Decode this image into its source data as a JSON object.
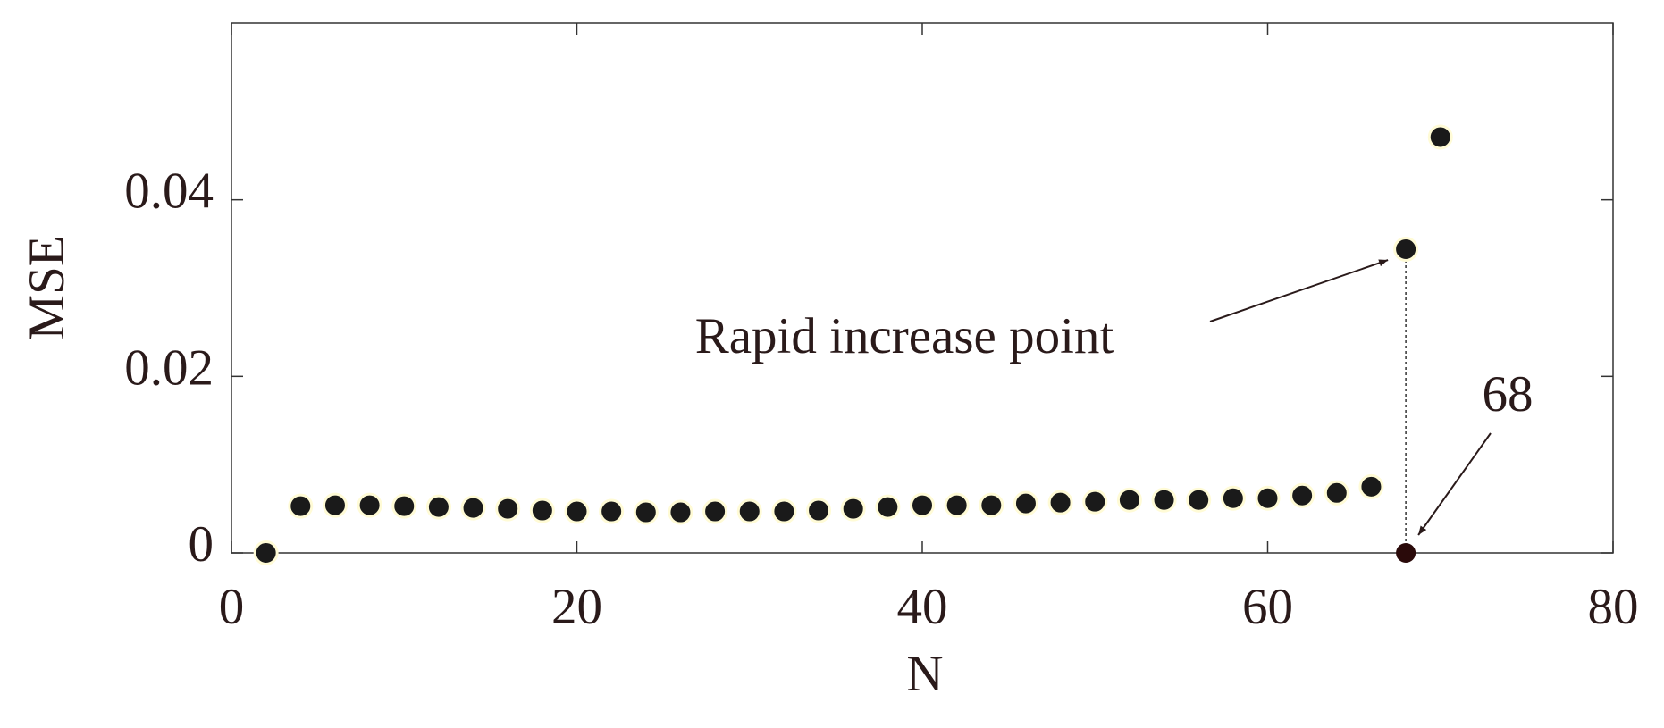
{
  "chart_data": {
    "type": "scatter",
    "x_label": "N",
    "y_label": "MSE",
    "series": [
      {
        "name": "MSE",
        "color": "#1a1a1a",
        "x": [
          2,
          4,
          6,
          8,
          10,
          12,
          14,
          16,
          18,
          20,
          22,
          24,
          26,
          28,
          30,
          32,
          34,
          36,
          38,
          40,
          42,
          44,
          46,
          48,
          50,
          52,
          54,
          56,
          58,
          60,
          62,
          64,
          66,
          68,
          70
        ],
        "values": [
          0,
          0.0053,
          0.0054,
          0.0054,
          0.0053,
          0.0052,
          0.0051,
          0.005,
          0.0048,
          0.0047,
          0.0047,
          0.0046,
          0.0046,
          0.0047,
          0.0047,
          0.0047,
          0.0048,
          0.005,
          0.0052,
          0.0054,
          0.0054,
          0.0054,
          0.0056,
          0.0057,
          0.0058,
          0.006,
          0.006,
          0.006,
          0.0062,
          0.0062,
          0.0065,
          0.0068,
          0.0075,
          0.0344,
          0.0471
        ]
      }
    ],
    "xlim": [
      0,
      80
    ],
    "xticks": [
      0,
      20,
      40,
      60,
      80
    ],
    "ylim": [
      0,
      0.06
    ],
    "yticks": [
      0,
      0.02,
      0.04
    ],
    "annotations": [
      {
        "text": "Rapid increase point",
        "x": 68,
        "y": 0.0344
      },
      {
        "text": "68",
        "x": 68,
        "y": 0
      }
    ]
  }
}
